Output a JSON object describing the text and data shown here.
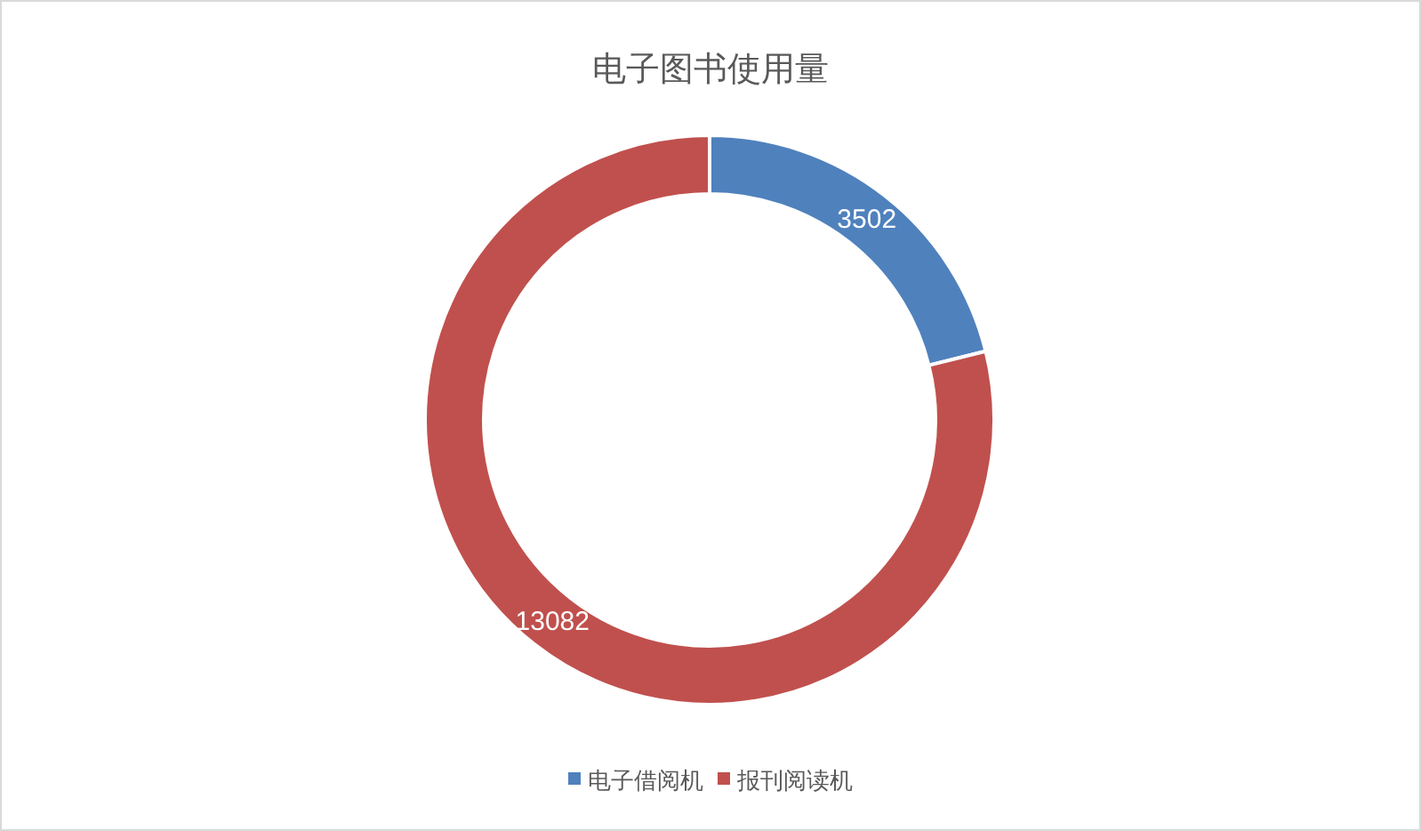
{
  "chart_data": {
    "type": "donut",
    "title": "电子图书使用量",
    "categories": [
      "电子借阅机",
      "报刊阅读机"
    ],
    "values": [
      3502,
      13082
    ],
    "colors": [
      "#4f81bd",
      "#c0504d"
    ],
    "data_labels": true,
    "legend": "bottom"
  }
}
